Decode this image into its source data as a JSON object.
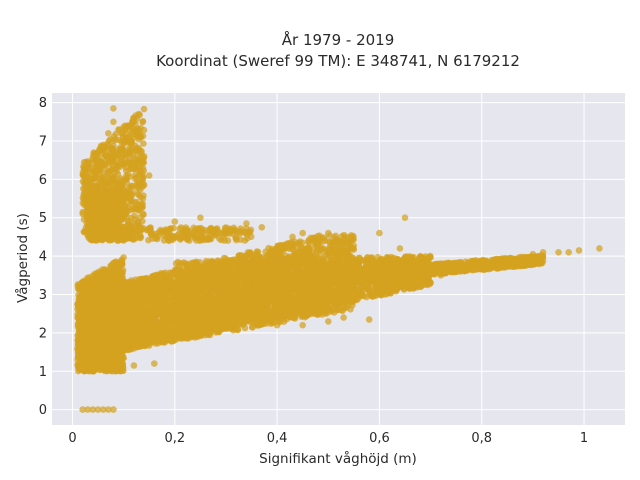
{
  "chart_data": {
    "type": "scatter",
    "title": "År 1979 - 2019",
    "subtitle": "Koordinat (Sweref 99 TM): E 348741, N 6179212",
    "xlabel": "Signifikant våghöjd (m)",
    "ylabel": "Vågperiod (s)",
    "xlim": [
      -0.04,
      1.08
    ],
    "ylim": [
      -0.4,
      8.25
    ],
    "x_ticks": [
      0,
      0.2,
      0.4,
      0.6,
      0.8,
      1
    ],
    "x_tick_labels": [
      "0",
      "0,2",
      "0,4",
      "0,6",
      "0,8",
      "1"
    ],
    "y_ticks": [
      0,
      1,
      2,
      3,
      4,
      5,
      6,
      7,
      8
    ],
    "y_tick_labels": [
      "0",
      "1",
      "2",
      "3",
      "4",
      "5",
      "6",
      "7",
      "8"
    ],
    "grid": true,
    "legend": false,
    "colors": {
      "marker": "#d4a21e",
      "plot_background": "#e6e6ef",
      "grid": "#ffffff"
    },
    "series": [
      {
        "points": [
          [
            0.02,
            5.1
          ],
          [
            0.03,
            5.6
          ],
          [
            0.04,
            6.2
          ],
          [
            0.05,
            6.5
          ],
          [
            0.06,
            6.9
          ],
          [
            0.07,
            7.2
          ],
          [
            0.08,
            7.5
          ],
          [
            0.08,
            7.85
          ],
          [
            0.09,
            7.3
          ],
          [
            0.1,
            7.0
          ],
          [
            0.11,
            6.7
          ],
          [
            0.12,
            6.4
          ],
          [
            0.14,
            6.6
          ],
          [
            0.15,
            6.1
          ],
          [
            0.14,
            5.85
          ],
          [
            0.05,
            5.45
          ],
          [
            0.03,
            4.8
          ],
          [
            0.02,
            0.0
          ],
          [
            0.03,
            0.0
          ],
          [
            0.04,
            0.0
          ],
          [
            0.05,
            0.0
          ],
          [
            0.06,
            0.0
          ],
          [
            0.07,
            0.0
          ],
          [
            0.08,
            0.0
          ],
          [
            0.01,
            1.3
          ],
          [
            0.01,
            1.6
          ],
          [
            0.02,
            1.1
          ],
          [
            0.04,
            1.0
          ],
          [
            0.06,
            1.05
          ],
          [
            0.09,
            1.1
          ],
          [
            0.12,
            1.15
          ],
          [
            0.16,
            1.2
          ],
          [
            0.2,
            4.9
          ],
          [
            0.25,
            5.0
          ],
          [
            0.28,
            4.7
          ],
          [
            0.34,
            4.85
          ],
          [
            0.37,
            4.75
          ],
          [
            0.43,
            4.5
          ],
          [
            0.45,
            4.6
          ],
          [
            0.5,
            4.6
          ],
          [
            0.52,
            4.4
          ],
          [
            0.6,
            4.6
          ],
          [
            0.65,
            5.0
          ],
          [
            0.64,
            4.2
          ],
          [
            0.5,
            2.3
          ],
          [
            0.53,
            2.4
          ],
          [
            0.58,
            2.35
          ],
          [
            0.45,
            2.2
          ],
          [
            0.4,
            2.2
          ],
          [
            0.68,
            3.2
          ],
          [
            0.7,
            3.3
          ],
          [
            0.72,
            3.5
          ],
          [
            0.75,
            3.6
          ],
          [
            0.78,
            3.7
          ],
          [
            0.8,
            3.75
          ],
          [
            0.82,
            3.8
          ],
          [
            0.84,
            3.85
          ],
          [
            0.86,
            3.9
          ],
          [
            0.88,
            3.95
          ],
          [
            0.9,
            4.05
          ],
          [
            0.92,
            4.1
          ],
          [
            0.95,
            4.1
          ],
          [
            0.97,
            4.1
          ],
          [
            0.99,
            4.15
          ],
          [
            1.03,
            4.2
          ]
        ]
      }
    ]
  }
}
